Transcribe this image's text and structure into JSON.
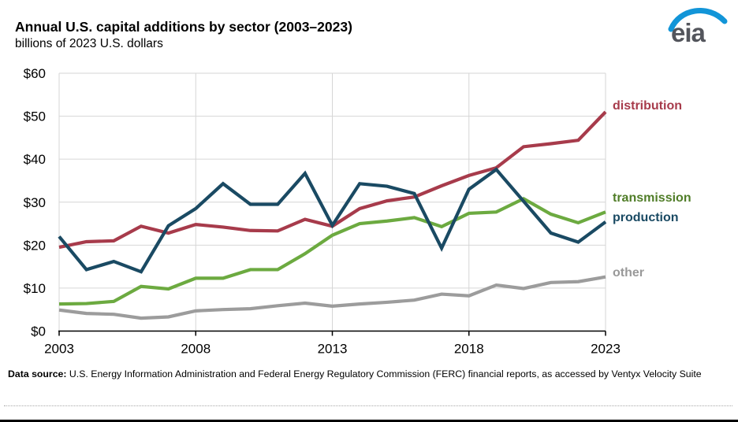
{
  "header": {
    "title": "Annual U.S. capital additions by sector (2003–2023)",
    "subtitle": "billions of 2023 U.S. dollars",
    "logo_text": "eia"
  },
  "colors": {
    "grid": "#d6d6d6",
    "axis": "#000000",
    "logo_swoosh": "#1295d8",
    "logo_text": "#53555c"
  },
  "chart_data": {
    "type": "line",
    "title": "Annual U.S. capital additions by sector (2003–2023)",
    "subtitle_unit": "billions of 2023 U.S. dollars",
    "x": [
      2003,
      2004,
      2005,
      2006,
      2007,
      2008,
      2009,
      2010,
      2011,
      2012,
      2013,
      2014,
      2015,
      2016,
      2017,
      2018,
      2019,
      2020,
      2021,
      2022,
      2023
    ],
    "series": [
      {
        "name": "distribution",
        "color": "#a73b4b",
        "label_color": "#a73b4b",
        "values": [
          19.5,
          20.8,
          21.0,
          24.4,
          22.8,
          24.8,
          24.2,
          23.4,
          23.3,
          26.0,
          24.4,
          28.5,
          30.3,
          31.2,
          33.8,
          36.2,
          38.0,
          42.9,
          43.6,
          44.4,
          51.0
        ]
      },
      {
        "name": "transmission",
        "color": "#6caa40",
        "label_color": "#507d28",
        "values": [
          6.3,
          6.4,
          6.9,
          10.4,
          9.8,
          12.3,
          12.3,
          14.3,
          14.3,
          18.0,
          22.3,
          25.0,
          25.6,
          26.4,
          24.3,
          27.4,
          27.7,
          30.8,
          27.2,
          25.2,
          27.7
        ]
      },
      {
        "name": "production",
        "color": "#1a4a63",
        "label_color": "#1a4a63",
        "values": [
          22.0,
          14.3,
          16.2,
          13.8,
          24.5,
          28.5,
          34.3,
          29.5,
          29.5,
          36.7,
          24.6,
          34.3,
          33.7,
          32.0,
          19.3,
          33.0,
          37.6,
          30.2,
          22.8,
          20.7,
          25.4
        ]
      },
      {
        "name": "other",
        "color": "#9c9c9c",
        "label_color": "#999999",
        "values": [
          4.9,
          4.1,
          3.9,
          3.0,
          3.3,
          4.7,
          5.0,
          5.2,
          5.9,
          6.5,
          5.8,
          6.3,
          6.7,
          7.2,
          8.6,
          8.2,
          10.7,
          9.9,
          11.3,
          11.5,
          12.6
        ]
      }
    ],
    "ylim": [
      0,
      60
    ],
    "y_ticks": [
      0,
      10,
      20,
      30,
      40,
      50,
      60
    ],
    "y_tick_prefix": "$",
    "x_ticks": [
      2003,
      2008,
      2013,
      2018,
      2023
    ],
    "grid": true,
    "legend_position": "right-of-line-ends"
  },
  "footer": {
    "source_label": "Data source:",
    "source_text": " U.S. Energy Information Administration and Federal Energy Regulatory Commission (FERC) financial reports, as accessed by Ventyx Velocity Suite"
  }
}
